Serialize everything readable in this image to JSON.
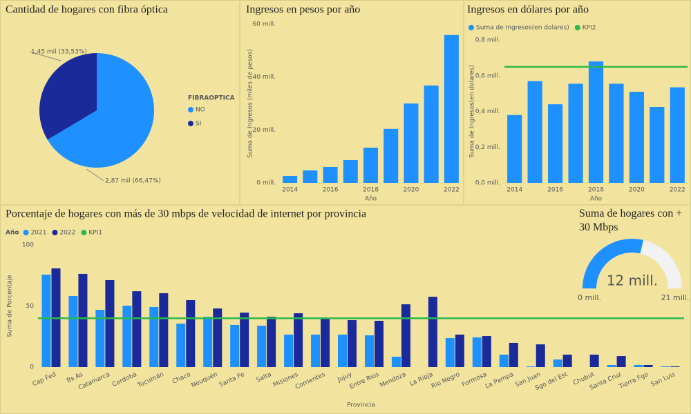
{
  "chart_data": [
    {
      "type": "pie",
      "title": "Cantidad de hogares con fibra óptica",
      "legend_title": "FIBRAOPTICA",
      "categories": [
        "NO",
        "SI"
      ],
      "values": [
        2.87,
        1.45
      ],
      "value_labels": [
        "2,87 mil (66,47%)",
        "1,45 mil (33,53%)"
      ],
      "colors": [
        "#1E90FF",
        "#1A2A9A"
      ]
    },
    {
      "type": "bar",
      "title": "Ingresos en pesos por año",
      "ylabel": "Suma de Ingresos (miles de pesos)",
      "xlabel": "Año",
      "categories": [
        "2014",
        null,
        "2016",
        null,
        "2018",
        null,
        "2020",
        null,
        "2022"
      ],
      "values": [
        2.6,
        4.7,
        6,
        8.6,
        13.3,
        20.4,
        30,
        36.8,
        55.9
      ],
      "color": "#1E90FF",
      "ylim": [
        0,
        60
      ],
      "yticks": [
        {
          "value": 0,
          "label": "0 mill."
        },
        {
          "value": 20,
          "label": "20 mill."
        },
        {
          "value": 40,
          "label": "40 mill."
        },
        {
          "value": 60,
          "label": "60 mill."
        }
      ]
    },
    {
      "type": "bar",
      "title": "Ingresos en dólares por año",
      "ylabel": "Suma de Ingresos(en dolares)",
      "xlabel": "Año",
      "categories": [
        "2014",
        null,
        "2016",
        null,
        "2018",
        null,
        "2020",
        null,
        "2022"
      ],
      "series": [
        {
          "name": "Suma de Ingresos(en dolares)",
          "type": "bar",
          "color": "#1E90FF",
          "values": [
            0.38,
            0.57,
            0.44,
            0.555,
            0.68,
            0.555,
            0.51,
            0.425,
            0.535
          ]
        },
        {
          "name": "KPI2",
          "type": "line",
          "color": "#2DB84B",
          "values": [
            0.65,
            0.65,
            0.65,
            0.65,
            0.65,
            0.65,
            0.65,
            0.65,
            0.65
          ]
        }
      ],
      "ylim": [
        0,
        0.8
      ],
      "yticks": [
        {
          "value": 0,
          "label": "0,0 mill."
        },
        {
          "value": 0.2,
          "label": "0,2 mill."
        },
        {
          "value": 0.4,
          "label": "0,4 mill."
        },
        {
          "value": 0.6,
          "label": "0,6 mill."
        },
        {
          "value": 0.8,
          "label": "0,8 mill."
        }
      ]
    },
    {
      "type": "bar",
      "title": "Porcentaje de hogares con más de 30 mbps de velocidad de internet por provincia",
      "ylabel": "Suma de Porcentaje",
      "xlabel": "Provincia",
      "legend_title": "Año",
      "categories": [
        "Cap Fed",
        "Bs As",
        "Catamarca",
        "Cordoba",
        "Tucumán",
        "Chaco",
        "Neuquén",
        "Santa Fe",
        "Salta",
        "Misiones",
        "Corrientes",
        "Jujuy",
        "Entre Rios",
        "Mendoza",
        "La Rioja",
        "Rio Negro",
        "Formosa",
        "La Pampa",
        "San Juan",
        "Sgo del Est",
        "Chubut",
        "Santa Cruz",
        "Tierra Fgo",
        "San Luis"
      ],
      "series": [
        {
          "name": "2021",
          "type": "bar",
          "color": "#1E90FF",
          "values": [
            75.7,
            58.2,
            46.9,
            50.3,
            49.2,
            35.6,
            41.2,
            34.5,
            33.9,
            26.6,
            26.6,
            26.6,
            26,
            8.5,
            null,
            23.7,
            24.3,
            10.2,
            0.6,
            6.2,
            null,
            1.7,
            1.7,
            0.6
          ]
        },
        {
          "name": "2022",
          "type": "bar",
          "color": "#1A2A9A",
          "values": [
            80.8,
            76.3,
            71.2,
            62.1,
            60.5,
            54.8,
            48,
            44.6,
            41.2,
            44.1,
            39.5,
            38.4,
            37.9,
            51.4,
            57.6,
            26.6,
            25.4,
            19.8,
            18.6,
            10.2,
            10.2,
            9,
            1.7,
            0.6
          ]
        },
        {
          "name": "KPI1",
          "type": "line",
          "color": "#2DB84B",
          "values": [
            40,
            40,
            40,
            40,
            40,
            40,
            40,
            40,
            40,
            40,
            40,
            40,
            40,
            40,
            40,
            40,
            40,
            40,
            40,
            40,
            40,
            40,
            40,
            40
          ]
        }
      ],
      "ylim": [
        0,
        100
      ],
      "yticks": [
        0,
        50,
        100
      ]
    },
    {
      "type": "gauge",
      "title": "Suma de hogares con + 30 Mbps",
      "value": 12,
      "value_label": "12 mill.",
      "ylim": [
        0,
        21
      ],
      "yticks": [
        {
          "value": 0,
          "label": "0 mill."
        },
        {
          "value": 21,
          "label": "21 mill."
        }
      ],
      "color": "#1E90FF"
    }
  ]
}
